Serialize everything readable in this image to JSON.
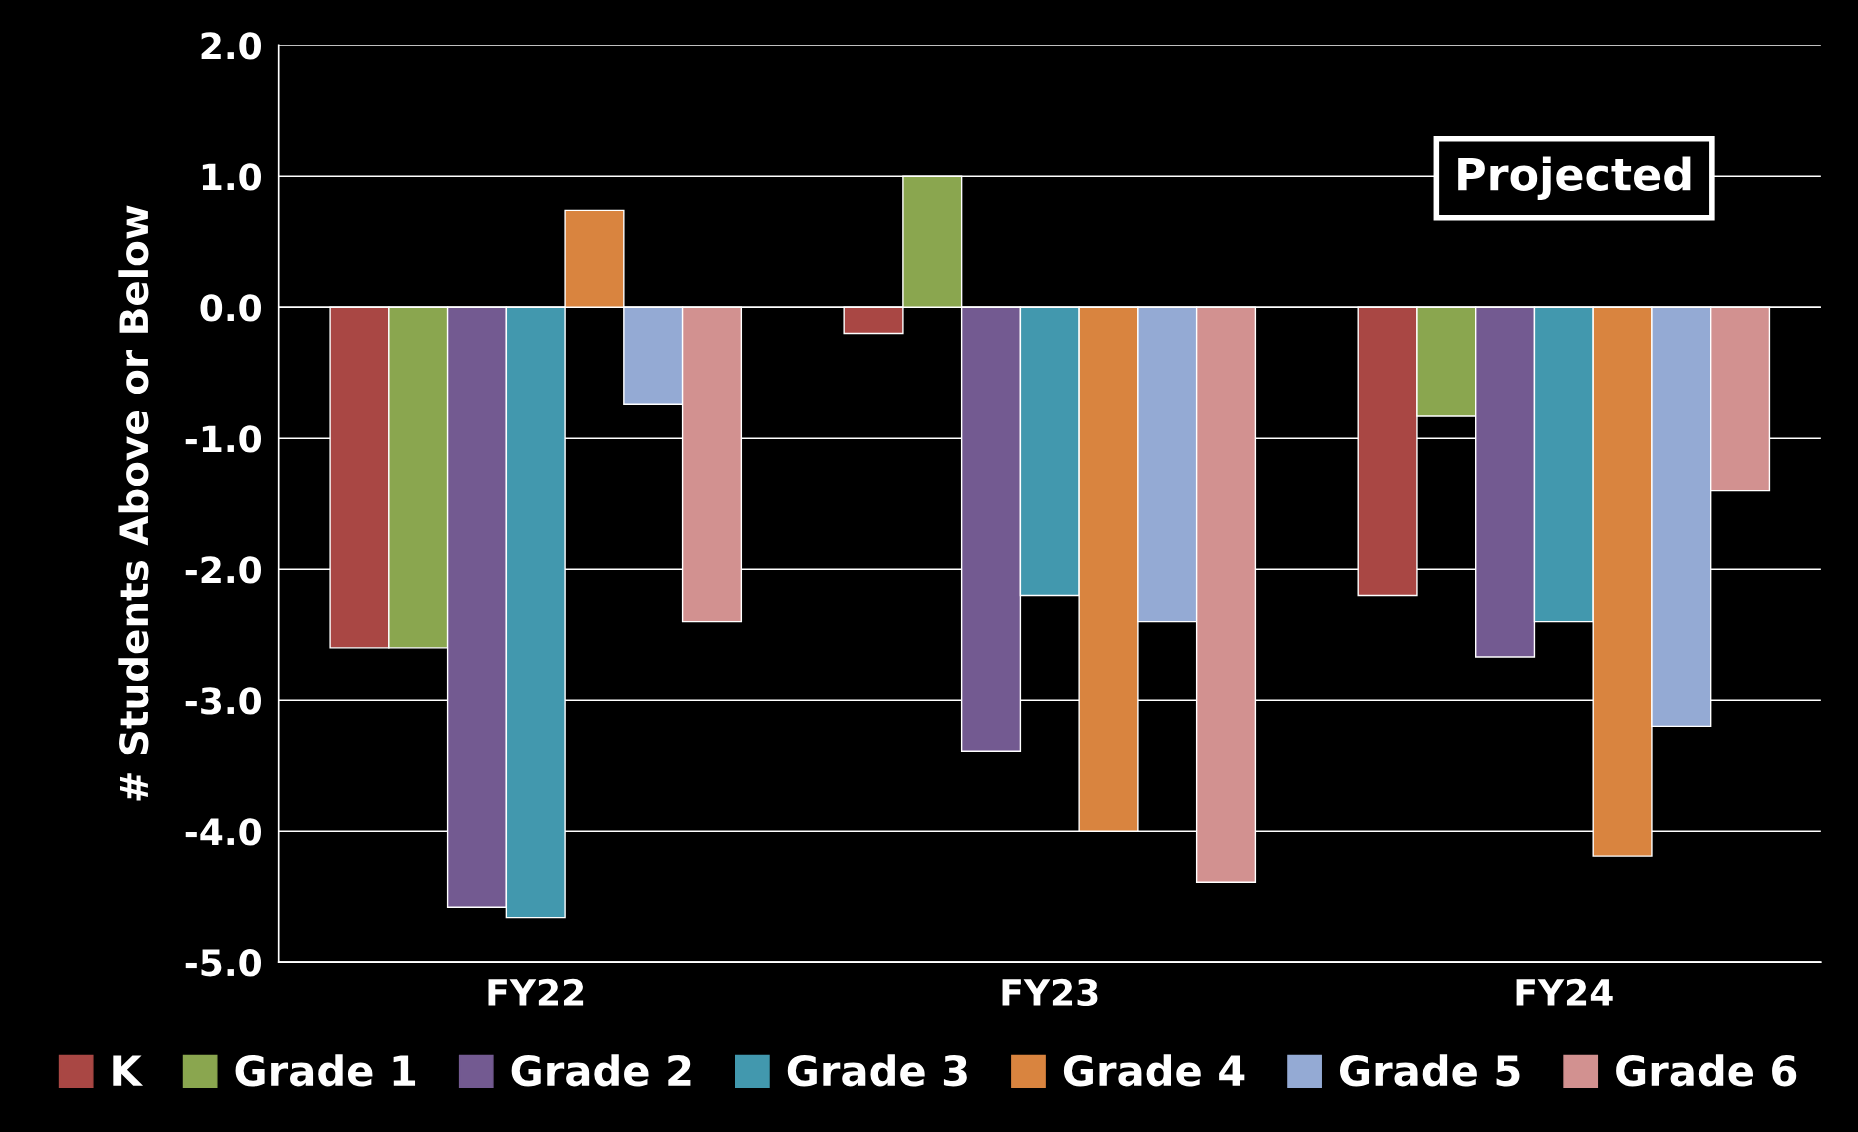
{
  "chart_data": {
    "type": "bar",
    "ylabel": "# Students Above or Below",
    "categories": [
      "FY22",
      "FY23",
      "FY24"
    ],
    "series": [
      {
        "name": "K",
        "color": "#a94744",
        "values": [
          -2.6,
          -0.2,
          -2.2
        ]
      },
      {
        "name": "Grade 1",
        "color": "#8aa64f",
        "values": [
          -2.6,
          1.0,
          -0.83
        ]
      },
      {
        "name": "Grade 2",
        "color": "#735a91",
        "values": [
          -4.58,
          -3.39,
          -2.67
        ]
      },
      {
        "name": "Grade 3",
        "color": "#4298ae",
        "values": [
          -4.66,
          -2.2,
          -2.4
        ]
      },
      {
        "name": "Grade 4",
        "color": "#d9843f",
        "values": [
          0.74,
          -4.0,
          -4.19
        ]
      },
      {
        "name": "Grade 5",
        "color": "#94aad4",
        "values": [
          -0.74,
          -2.4,
          -3.2
        ]
      },
      {
        "name": "Grade 6",
        "color": "#d29190",
        "values": [
          -2.4,
          -4.39,
          -1.4
        ]
      }
    ],
    "ylim": [
      -5,
      2
    ],
    "yticks": [
      {
        "value": -5,
        "label": "-5.0"
      },
      {
        "value": -4,
        "label": "-4.0"
      },
      {
        "value": -3,
        "label": "-3.0"
      },
      {
        "value": -2,
        "label": "-2.0"
      },
      {
        "value": -1,
        "label": "-1.0"
      },
      {
        "value": 0,
        "label": "0.0"
      },
      {
        "value": 1,
        "label": "1.0"
      },
      {
        "value": 2,
        "label": "2.0"
      }
    ],
    "grid": "y",
    "legend": "bottom",
    "annotations": [
      "Projected"
    ]
  }
}
